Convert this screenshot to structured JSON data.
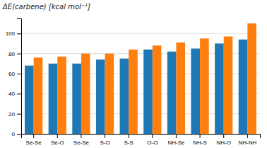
{
  "chart_data": {
    "type": "bar",
    "y_label": "ΔE(carbene) [kcal mol⁻¹]",
    "categories": [
      "Se-Se",
      "Se-O",
      "Se-Se",
      "S-O",
      "S-S",
      "O-O",
      "NH-Se",
      "NH-S",
      "NH-O",
      "NH-NH"
    ],
    "series": [
      {
        "values": [
          68,
          70,
          70,
          74,
          75,
          84,
          82,
          85,
          90,
          94
        ]
      },
      {
        "values": [
          76,
          77,
          80,
          80,
          84,
          88,
          91,
          95,
          97,
          110
        ]
      }
    ],
    "ylim": [
      0,
      115
    ],
    "yticks": [
      0,
      20,
      40,
      60,
      80,
      100
    ],
    "grid": true
  }
}
